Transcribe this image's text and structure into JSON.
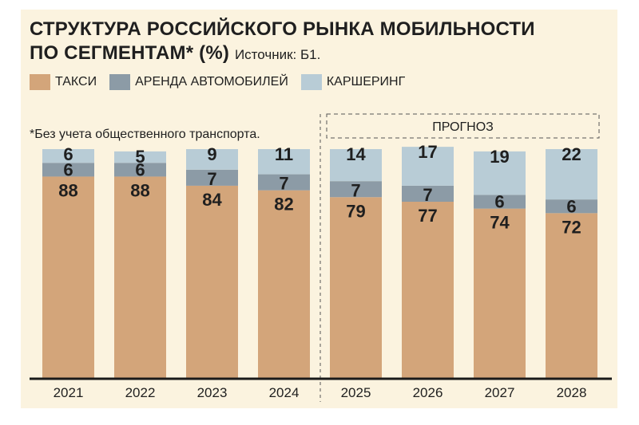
{
  "title_line1": "СТРУКТУРА РОССИЙСКОГО РЫНКА МОБИЛЬНОСТИ",
  "title_line2": "ПО СЕГМЕНТАМ* (%)",
  "source": "Источник: Б1.",
  "footnote": "*Без учета общественного транспорта.",
  "forecast_label": "ПРОГНОЗ",
  "legend": [
    {
      "label": "ТАКСИ",
      "color": "#d3a57a"
    },
    {
      "label": "АРЕНДА АВТОМОБИЛЕЙ",
      "color": "#8c9ba6"
    },
    {
      "label": "КАРШЕРИНГ",
      "color": "#b8ccd6"
    }
  ],
  "chart_data": {
    "type": "bar",
    "stacked": true,
    "categories": [
      "2021",
      "2022",
      "2023",
      "2024",
      "2025",
      "2026",
      "2027",
      "2028"
    ],
    "series": [
      {
        "name": "ТАКСИ",
        "color": "#d3a57a",
        "values": [
          88,
          88,
          84,
          82,
          79,
          77,
          74,
          72
        ]
      },
      {
        "name": "АРЕНДА АВТОМОБИЛЕЙ",
        "color": "#8c9ba6",
        "values": [
          6,
          6,
          7,
          7,
          7,
          7,
          6,
          6
        ]
      },
      {
        "name": "КАРШЕРИНГ",
        "color": "#b8ccd6",
        "values": [
          6,
          5,
          9,
          11,
          14,
          17,
          19,
          22
        ]
      }
    ],
    "forecast_categories": [
      "2025",
      "2026",
      "2027",
      "2028"
    ],
    "ylim": [
      0,
      100
    ],
    "grid": false,
    "legend_position": "top-left"
  }
}
